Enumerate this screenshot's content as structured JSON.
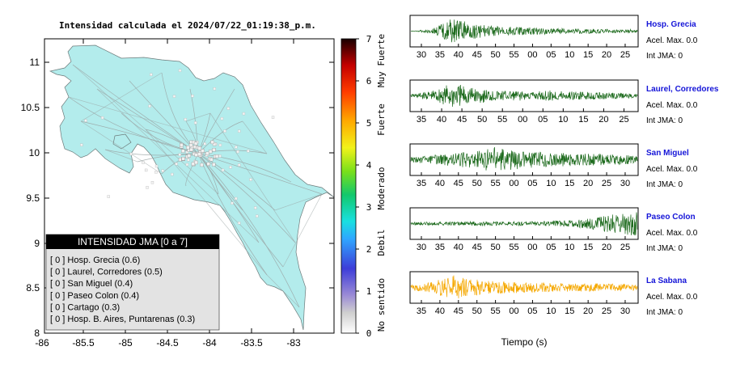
{
  "map": {
    "title": "Intensidad calculada el 2024/07/22_01:19:38_p.m.",
    "y_ticks": [
      "11",
      "10.5",
      "10",
      "9.5",
      "9",
      "8.5",
      "8"
    ],
    "x_ticks": [
      "-86",
      "-85.5",
      "-85",
      "-84.5",
      "-84",
      "-83.5",
      "-83"
    ],
    "land_color": "#b3ecec",
    "legend": {
      "header": "INTENSIDAD JMA [0 a 7]",
      "items": [
        "[ 0 ]  Hosp. Grecia (0.6)",
        "[ 0 ]  Laurel, Corredores (0.5)",
        "[ 0 ]  San Miguel (0.4)",
        "[ 0 ]  Paseo Colon (0.4)",
        "[ 0 ]  Cartago (0.3)",
        "[ 0 ]  Hosp. B. Aires, Puntarenas (0.3)"
      ]
    }
  },
  "colorbar": {
    "ticks": [
      "7",
      "6",
      "5",
      "4",
      "3",
      "2",
      "1",
      "0"
    ],
    "labels": [
      "Muy Fuerte",
      "Fuerte",
      "Moderado",
      "Debil",
      "No sentido"
    ]
  },
  "waveforms": {
    "xlabel": "Tiempo (s)",
    "stations": [
      {
        "name": "Hosp. Grecia",
        "acel": "Acel. Max. 0.0",
        "jma": "Int JMA: 0",
        "color": "#1e6b1e",
        "ticks": [
          "30",
          "35",
          "40",
          "45",
          "50",
          "55",
          "00",
          "05",
          "10",
          "15",
          "20",
          "25"
        ],
        "env": [
          0,
          0.15,
          0.9,
          0.55,
          0.35,
          0.3,
          0.25,
          0.2,
          0.18,
          0.15,
          0.13,
          0.12
        ]
      },
      {
        "name": "Laurel, Corredores",
        "acel": "Acel. Max. 0.0",
        "jma": "Int JMA: 0",
        "color": "#1e6b1e",
        "ticks": [
          "35",
          "40",
          "45",
          "50",
          "55",
          "00",
          "05",
          "10",
          "15",
          "20",
          "25"
        ],
        "env": [
          0.1,
          0.35,
          0.9,
          0.6,
          0.4,
          0.35,
          0.3,
          0.4,
          0.3,
          0.25,
          0.2,
          0.15
        ]
      },
      {
        "name": "San Miguel",
        "acel": "Acel. Max. 0.0",
        "jma": "Int JMA: 0",
        "color": "#1e6b1e",
        "ticks": [
          "35",
          "40",
          "45",
          "50",
          "55",
          "00",
          "05",
          "10",
          "15",
          "20",
          "25",
          "30"
        ],
        "env": [
          0.2,
          0.3,
          0.45,
          0.6,
          0.9,
          0.7,
          0.55,
          0.5,
          0.45,
          0.4,
          0.35,
          0.3
        ]
      },
      {
        "name": "Paseo Colon",
        "acel": "Acel. Max. 0.0",
        "jma": "Int JMA: 0",
        "color": "#1e6b1e",
        "ticks": [
          "30",
          "35",
          "40",
          "45",
          "50",
          "55",
          "00",
          "05",
          "10",
          "15",
          "20",
          "25"
        ],
        "env": [
          0.1,
          0.12,
          0.12,
          0.15,
          0.15,
          0.15,
          0.15,
          0.2,
          0.25,
          0.45,
          0.7,
          0.9
        ]
      },
      {
        "name": "La Sabana",
        "acel": "Acel. Max. 0.0",
        "jma": "Int JMA: 0",
        "color": "#f5a800",
        "ticks": [
          "35",
          "40",
          "45",
          "50",
          "55",
          "00",
          "05",
          "10",
          "15",
          "20",
          "25",
          "30"
        ],
        "env": [
          0.2,
          0.4,
          0.9,
          0.6,
          0.45,
          0.4,
          0.35,
          0.3,
          0.3,
          0.28,
          0.25,
          0.2
        ]
      }
    ]
  },
  "chart_data": {
    "type": "map",
    "title": "Intensidad calculada el 2024/07/22_01:19:38_p.m.",
    "xlim": [
      -86,
      -82.5
    ],
    "ylim": [
      8,
      11.3
    ],
    "colorbar_range": [
      0,
      7
    ],
    "stations": [
      {
        "name": "Hosp. Grecia",
        "jma": 0,
        "value": 0.6
      },
      {
        "name": "Laurel, Corredores",
        "jma": 0,
        "value": 0.5
      },
      {
        "name": "San Miguel",
        "jma": 0,
        "value": 0.4
      },
      {
        "name": "Paseo Colon",
        "jma": 0,
        "value": 0.4
      },
      {
        "name": "Cartago",
        "jma": 0,
        "value": 0.3
      },
      {
        "name": "Hosp. B. Aires, Puntarenas",
        "jma": 0,
        "value": 0.3
      }
    ]
  }
}
